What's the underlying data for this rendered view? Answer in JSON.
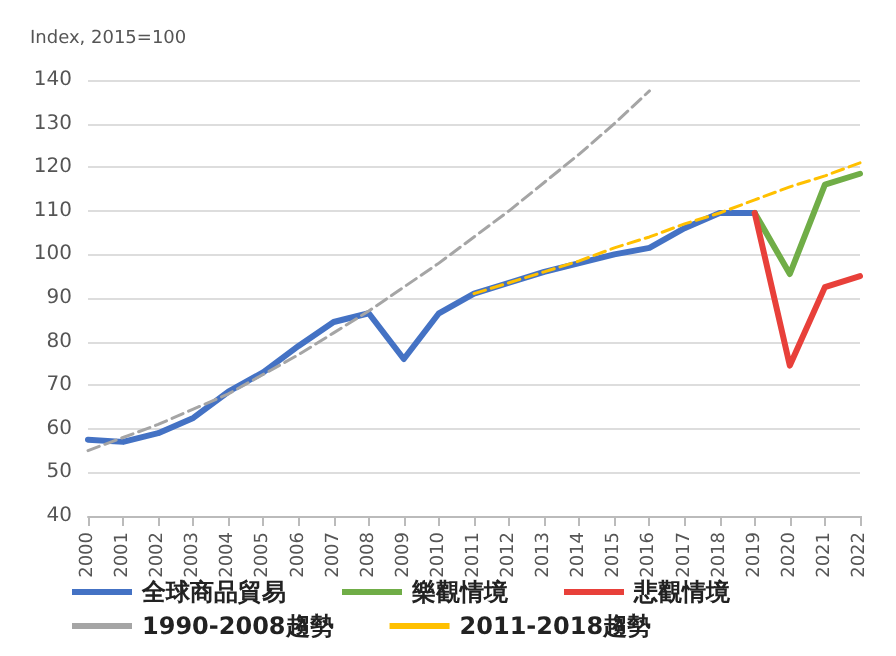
{
  "chart_data": {
    "type": "line",
    "ylabel": "Index, 2015=100",
    "categories": [
      "2000",
      "2001",
      "2002",
      "2003",
      "2004",
      "2005",
      "2006",
      "2007",
      "2008",
      "2009",
      "2010",
      "2011",
      "2012",
      "2013",
      "2014",
      "2015",
      "2016",
      "2017",
      "2018",
      "2019",
      "2020",
      "2021",
      "2022"
    ],
    "series": [
      {
        "name": "全球商品貿易",
        "color": "#4472c4",
        "line_style": "solid",
        "values": [
          57.5,
          57,
          59,
          62.5,
          68.5,
          73,
          79,
          84.5,
          86.5,
          76,
          86.5,
          91,
          93.5,
          96,
          98,
          100,
          101.5,
          106,
          109.5,
          109.5,
          null,
          null,
          null
        ]
      },
      {
        "name": "樂觀情境",
        "color": "#70ad47",
        "line_style": "solid",
        "values": [
          null,
          null,
          null,
          null,
          null,
          null,
          null,
          null,
          null,
          null,
          null,
          null,
          null,
          null,
          null,
          null,
          null,
          null,
          null,
          109.5,
          95.5,
          116,
          118.5
        ]
      },
      {
        "name": "悲觀情境",
        "color": "#e8403a",
        "line_style": "solid",
        "values": [
          null,
          null,
          null,
          null,
          null,
          null,
          null,
          null,
          null,
          null,
          null,
          null,
          null,
          null,
          null,
          null,
          null,
          null,
          null,
          109.5,
          74.5,
          92.5,
          95
        ]
      },
      {
        "name": "1990-2008趨勢",
        "color": "#a5a5a5",
        "line_style": "dashed",
        "values": [
          55,
          58,
          61,
          64.5,
          68,
          72.5,
          77,
          82,
          87,
          92.5,
          98,
          104,
          110,
          116.5,
          123,
          130,
          137.5,
          null,
          null,
          null,
          null,
          null,
          null
        ]
      },
      {
        "name": "2011-2018趨勢",
        "color": "#ffc000",
        "line_style": "dashed",
        "values": [
          null,
          null,
          null,
          null,
          null,
          null,
          null,
          null,
          null,
          null,
          null,
          91,
          93.5,
          96,
          98.5,
          101.5,
          104,
          107,
          109.5,
          112.5,
          115.5,
          118,
          121
        ]
      }
    ],
    "ylim": [
      40,
      140
    ],
    "yticks": [
      40,
      50,
      60,
      70,
      80,
      90,
      100,
      110,
      120,
      130,
      140
    ],
    "grid": "y",
    "legend": "bottom",
    "marker": "none"
  }
}
